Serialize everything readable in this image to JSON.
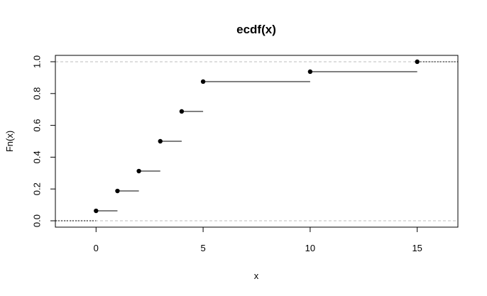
{
  "chart_data": {
    "type": "step",
    "title": "ecdf(x)",
    "xlabel": "x",
    "ylabel": "Fn(x)",
    "xlim": [
      -1.9,
      16.9
    ],
    "ylim": [
      -0.04,
      1.04
    ],
    "x_ticks": [
      0,
      5,
      10,
      15
    ],
    "y_ticks": [
      0.0,
      0.2,
      0.4,
      0.6,
      0.8,
      1.0
    ],
    "x_tick_labels": [
      "0",
      "5",
      "10",
      "15"
    ],
    "y_tick_labels": [
      "0.0",
      "0.2",
      "0.4",
      "0.6",
      "0.8",
      "1.0"
    ],
    "points": [
      {
        "x": 0,
        "y": 0.0625
      },
      {
        "x": 1,
        "y": 0.1875
      },
      {
        "x": 2,
        "y": 0.3125
      },
      {
        "x": 3,
        "y": 0.5
      },
      {
        "x": 4,
        "y": 0.6875
      },
      {
        "x": 5,
        "y": 0.875
      },
      {
        "x": 10,
        "y": 0.9375
      },
      {
        "x": 15,
        "y": 1.0
      }
    ],
    "reference_lines": [
      0,
      1
    ],
    "grid": false,
    "legend": "none"
  }
}
